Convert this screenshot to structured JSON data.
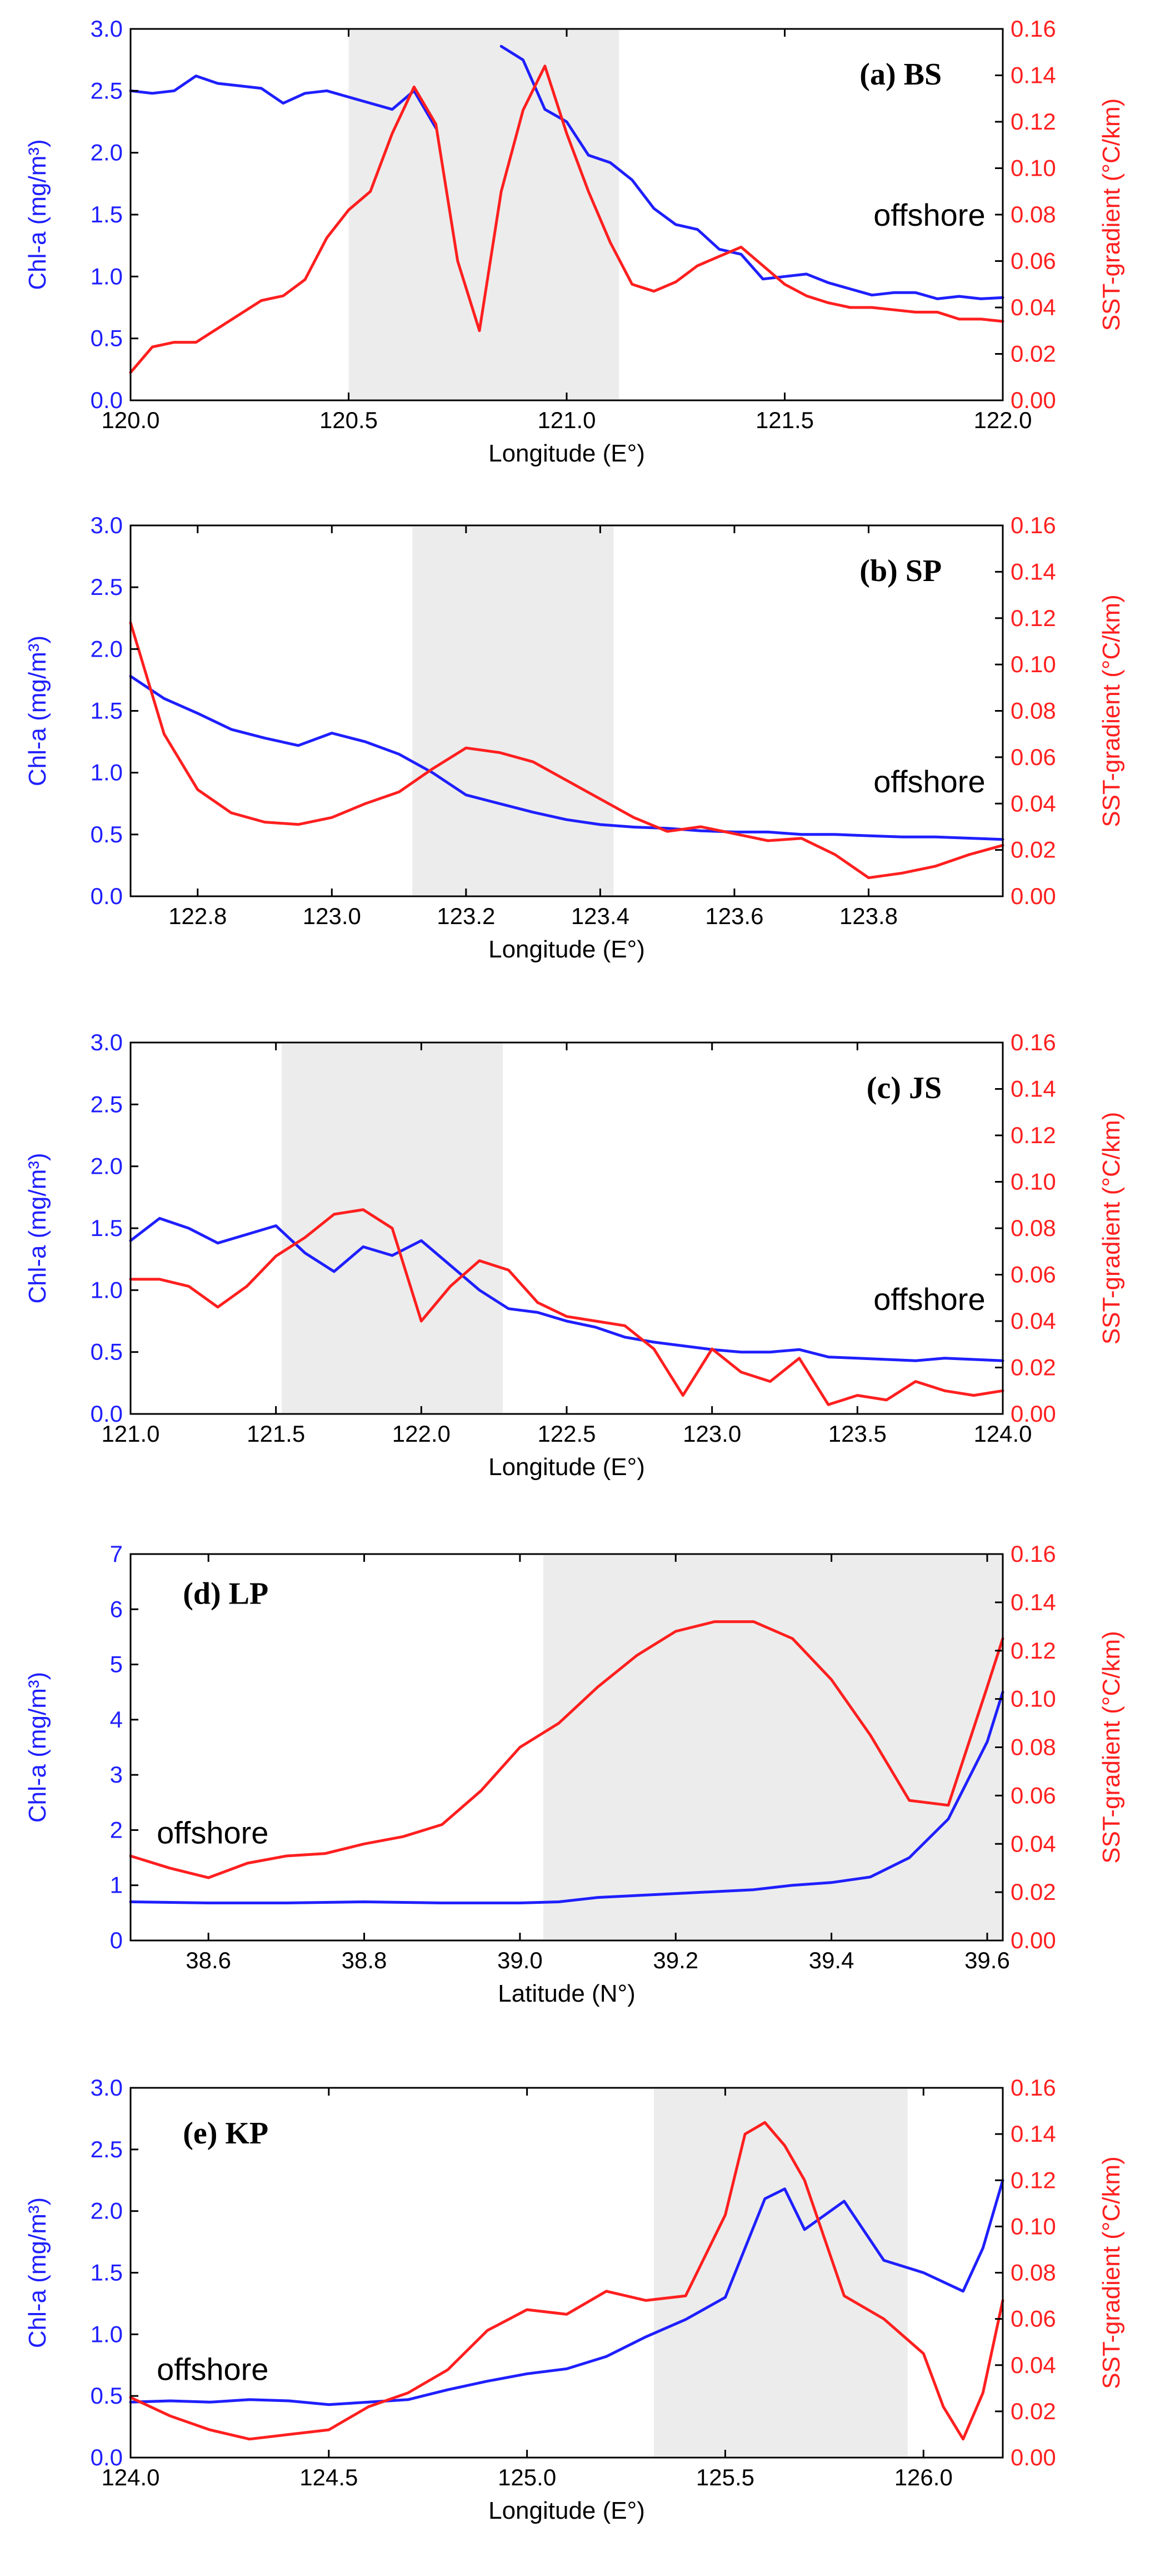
{
  "figure": {
    "colors": {
      "chl": "#1f1fff",
      "sst": "#ff1f1f",
      "shade": "#ececec",
      "axis": "#000000"
    }
  },
  "chart_data": [
    {
      "type": "line",
      "title": "(a) BS",
      "annotation": "offshore",
      "xlabel": "Longitude (E°)",
      "ylabel_left": "Chl-a (mg/m³)",
      "ylabel_right": "SST-gradient (°C/km)",
      "xlim": [
        120.0,
        122.0
      ],
      "ylim_left": [
        0.0,
        3.0
      ],
      "ylim_right": [
        0.0,
        0.16
      ],
      "xticks": [
        "120.0",
        "120.5",
        "121.0",
        "121.5",
        "122.0"
      ],
      "yticks_left": [
        "0.0",
        "0.5",
        "1.0",
        "1.5",
        "2.0",
        "2.5",
        "3.0"
      ],
      "yticks_right": [
        "0.00",
        "0.02",
        "0.04",
        "0.06",
        "0.08",
        "0.10",
        "0.12",
        "0.14",
        "0.16"
      ],
      "shaded_range": [
        120.5,
        121.12
      ],
      "series": [
        {
          "name": "Chl-a",
          "axis": "left",
          "x": [
            120.0,
            120.05,
            120.1,
            120.15,
            120.2,
            120.25,
            120.3,
            120.35,
            120.4,
            120.45,
            120.5,
            120.55,
            120.6,
            120.65,
            120.7,
            120.75,
            120.8,
            null,
            120.85,
            120.9,
            120.95,
            121.0,
            121.05,
            121.1,
            121.15,
            121.2,
            121.25,
            121.3,
            121.35,
            121.4,
            121.45,
            121.5,
            121.55,
            121.6,
            121.65,
            121.7,
            121.75,
            121.8,
            121.85,
            121.9,
            121.95,
            122.0
          ],
          "values": [
            2.5,
            2.48,
            2.5,
            2.62,
            2.56,
            2.54,
            2.52,
            2.4,
            2.48,
            2.5,
            2.45,
            2.4,
            2.35,
            2.5,
            2.2,
            null,
            null,
            null,
            2.86,
            2.75,
            2.35,
            2.25,
            1.98,
            1.92,
            1.78,
            1.55,
            1.42,
            1.38,
            1.22,
            1.18,
            0.98,
            1.0,
            1.02,
            0.95,
            0.9,
            0.85,
            0.87,
            0.87,
            0.82,
            0.84,
            0.82,
            0.83
          ]
        },
        {
          "name": "SST-gradient",
          "axis": "right",
          "x": [
            120.0,
            120.05,
            120.1,
            120.15,
            120.2,
            120.25,
            120.3,
            120.35,
            120.4,
            120.45,
            120.5,
            120.55,
            120.6,
            120.65,
            120.7,
            120.75,
            120.8,
            120.85,
            120.9,
            120.95,
            121.0,
            121.05,
            121.1,
            121.15,
            121.2,
            121.25,
            121.3,
            121.35,
            121.4,
            121.45,
            121.5,
            121.55,
            121.6,
            121.65,
            121.7,
            121.75,
            121.8,
            121.85,
            121.9,
            121.95,
            122.0
          ],
          "values": [
            0.012,
            0.023,
            0.025,
            0.025,
            0.031,
            0.037,
            0.043,
            0.045,
            0.052,
            0.07,
            0.082,
            0.09,
            0.115,
            0.135,
            0.119,
            0.06,
            0.03,
            0.09,
            0.125,
            0.144,
            0.115,
            0.09,
            0.068,
            0.05,
            0.047,
            0.051,
            0.058,
            0.062,
            0.066,
            0.058,
            0.05,
            0.045,
            0.042,
            0.04,
            0.04,
            0.039,
            0.038,
            0.038,
            0.035,
            0.035,
            0.034
          ]
        }
      ]
    },
    {
      "type": "line",
      "title": "(b) SP",
      "annotation": "offshore",
      "xlabel": "Longitude (E°)",
      "ylabel_left": "Chl-a (mg/m³)",
      "ylabel_right": "SST-gradient (°C/km)",
      "xlim": [
        122.7,
        124.0
      ],
      "ylim_left": [
        0.0,
        3.0
      ],
      "ylim_right": [
        0.0,
        0.16
      ],
      "xticks": [
        "122.8",
        "123.0",
        "123.2",
        "123.4",
        "123.6",
        "123.8"
      ],
      "yticks_left": [
        "0.0",
        "0.5",
        "1.0",
        "1.5",
        "2.0",
        "2.5",
        "3.0"
      ],
      "yticks_right": [
        "0.00",
        "0.02",
        "0.04",
        "0.06",
        "0.08",
        "0.10",
        "0.12",
        "0.14",
        "0.16"
      ],
      "shaded_range": [
        123.12,
        123.42
      ],
      "series": [
        {
          "name": "Chl-a",
          "axis": "left",
          "x": [
            122.7,
            122.75,
            122.8,
            122.85,
            122.9,
            122.95,
            123.0,
            123.05,
            123.1,
            123.15,
            123.2,
            123.25,
            123.3,
            123.35,
            123.4,
            123.45,
            123.5,
            123.55,
            123.6,
            123.65,
            123.7,
            123.75,
            123.8,
            123.85,
            123.9,
            123.95,
            124.0
          ],
          "values": [
            1.78,
            1.6,
            1.48,
            1.35,
            1.28,
            1.22,
            1.32,
            1.25,
            1.15,
            1.0,
            0.82,
            0.75,
            0.68,
            0.62,
            0.58,
            0.56,
            0.55,
            0.53,
            0.52,
            0.52,
            0.5,
            0.5,
            0.49,
            0.48,
            0.48,
            0.47,
            0.46
          ]
        },
        {
          "name": "SST-gradient",
          "axis": "right",
          "x": [
            122.7,
            122.75,
            122.8,
            122.85,
            122.9,
            122.95,
            123.0,
            123.05,
            123.1,
            123.15,
            123.2,
            123.25,
            123.3,
            123.35,
            123.4,
            123.45,
            123.5,
            123.55,
            123.6,
            123.65,
            123.7,
            123.75,
            123.8,
            123.85,
            123.9,
            123.95,
            124.0
          ],
          "values": [
            0.118,
            0.07,
            0.046,
            0.036,
            0.032,
            0.031,
            0.034,
            0.04,
            0.045,
            0.055,
            0.064,
            0.062,
            0.058,
            0.05,
            0.042,
            0.034,
            0.028,
            0.03,
            0.027,
            0.024,
            0.025,
            0.018,
            0.008,
            0.01,
            0.013,
            0.018,
            0.022
          ]
        }
      ]
    },
    {
      "type": "line",
      "title": "(c) JS",
      "annotation": "offshore",
      "xlabel": "Longitude (E°)",
      "ylabel_left": "Chl-a (mg/m³)",
      "ylabel_right": "SST-gradient (°C/km)",
      "xlim": [
        121.0,
        124.0
      ],
      "ylim_left": [
        0.0,
        3.0
      ],
      "ylim_right": [
        0.0,
        0.16
      ],
      "xticks": [
        "121.0",
        "121.5",
        "122.0",
        "122.5",
        "123.0",
        "123.5",
        "124.0"
      ],
      "yticks_left": [
        "0.0",
        "0.5",
        "1.0",
        "1.5",
        "2.0",
        "2.5",
        "3.0"
      ],
      "yticks_right": [
        "0.00",
        "0.02",
        "0.04",
        "0.06",
        "0.08",
        "0.10",
        "0.12",
        "0.14",
        "0.16"
      ],
      "shaded_range": [
        121.52,
        122.28
      ],
      "series": [
        {
          "name": "Chl-a",
          "axis": "left",
          "x": [
            121.0,
            121.1,
            121.2,
            121.3,
            121.4,
            121.5,
            121.6,
            121.7,
            121.8,
            121.9,
            122.0,
            122.1,
            122.2,
            122.3,
            122.4,
            122.5,
            122.6,
            122.7,
            122.8,
            122.9,
            123.0,
            123.1,
            123.2,
            123.3,
            123.4,
            123.5,
            123.6,
            123.7,
            123.8,
            123.9,
            124.0
          ],
          "values": [
            1.4,
            1.58,
            1.5,
            1.38,
            1.45,
            1.52,
            1.3,
            1.15,
            1.35,
            1.28,
            1.4,
            1.2,
            1.0,
            0.85,
            0.82,
            0.75,
            0.7,
            0.62,
            0.58,
            0.55,
            0.52,
            0.5,
            0.5,
            0.52,
            0.46,
            0.45,
            0.44,
            0.43,
            0.45,
            0.44,
            0.43
          ]
        },
        {
          "name": "SST-gradient",
          "axis": "right",
          "x": [
            121.0,
            121.1,
            121.2,
            121.3,
            121.4,
            121.5,
            121.6,
            121.7,
            121.8,
            121.9,
            122.0,
            122.1,
            122.2,
            122.3,
            122.4,
            122.5,
            122.6,
            122.7,
            122.8,
            122.9,
            123.0,
            123.1,
            123.2,
            123.3,
            123.4,
            123.5,
            123.6,
            123.7,
            123.8,
            123.9,
            124.0
          ],
          "values": [
            0.058,
            0.058,
            0.055,
            0.046,
            0.055,
            0.068,
            0.076,
            0.086,
            0.088,
            0.08,
            0.04,
            0.055,
            0.066,
            0.062,
            0.048,
            0.042,
            0.04,
            0.038,
            0.028,
            0.008,
            0.028,
            0.018,
            0.014,
            0.024,
            0.004,
            0.008,
            0.006,
            0.014,
            0.01,
            0.008,
            0.01
          ]
        }
      ]
    },
    {
      "type": "line",
      "title": "(d) LP",
      "annotation": "offshore",
      "xlabel": "Latitude (N°)",
      "ylabel_left": "Chl-a (mg/m³)",
      "ylabel_right": "SST-gradient (°C/km)",
      "xlim": [
        38.5,
        39.62
      ],
      "ylim_left": [
        0,
        7
      ],
      "ylim_right": [
        0.0,
        0.16
      ],
      "xticks": [
        "38.6",
        "38.8",
        "39.0",
        "39.2",
        "39.4",
        "39.6"
      ],
      "yticks_left": [
        "0",
        "1",
        "2",
        "3",
        "4",
        "5",
        "6",
        "7"
      ],
      "yticks_right": [
        "0.00",
        "0.02",
        "0.04",
        "0.06",
        "0.08",
        "0.10",
        "0.12",
        "0.14",
        "0.16"
      ],
      "shaded_range": [
        39.03,
        39.62
      ],
      "series": [
        {
          "name": "Chl-a",
          "axis": "left",
          "x": [
            38.5,
            38.6,
            38.7,
            38.8,
            38.9,
            39.0,
            39.05,
            39.1,
            39.2,
            39.3,
            39.35,
            39.4,
            39.45,
            39.5,
            39.55,
            39.6,
            39.62
          ],
          "values": [
            0.7,
            0.68,
            0.68,
            0.7,
            0.68,
            0.68,
            0.7,
            0.78,
            0.85,
            0.92,
            1.0,
            1.05,
            1.15,
            1.5,
            2.2,
            3.6,
            4.5
          ]
        },
        {
          "name": "SST-gradient",
          "axis": "right",
          "x": [
            38.5,
            38.55,
            38.6,
            38.65,
            38.7,
            38.75,
            38.8,
            38.85,
            38.9,
            38.95,
            39.0,
            39.05,
            39.1,
            39.15,
            39.2,
            39.25,
            39.3,
            39.35,
            39.4,
            39.45,
            39.5,
            39.55,
            39.6,
            39.62
          ],
          "values": [
            0.035,
            0.03,
            0.026,
            0.032,
            0.035,
            0.036,
            0.04,
            0.043,
            0.048,
            0.062,
            0.08,
            0.09,
            0.105,
            0.118,
            0.128,
            0.132,
            0.132,
            0.125,
            0.108,
            0.085,
            0.058,
            0.056,
            0.105,
            0.125
          ]
        }
      ]
    },
    {
      "type": "line",
      "title": "(e) KP",
      "annotation": "offshore",
      "xlabel": "Longitude (E°)",
      "ylabel_left": "Chl-a (mg/m³)",
      "ylabel_right": "SST-gradient (°C/km)",
      "xlim": [
        124.0,
        126.2
      ],
      "ylim_left": [
        0.0,
        3.0
      ],
      "ylim_right": [
        0.0,
        0.16
      ],
      "xticks": [
        "124.0",
        "124.5",
        "125.0",
        "125.5",
        "126.0"
      ],
      "yticks_left": [
        "0.0",
        "0.5",
        "1.0",
        "1.5",
        "2.0",
        "2.5",
        "3.0"
      ],
      "yticks_right": [
        "0.00",
        "0.02",
        "0.04",
        "0.06",
        "0.08",
        "0.10",
        "0.12",
        "0.14",
        "0.16"
      ],
      "shaded_range": [
        125.32,
        125.96
      ],
      "series": [
        {
          "name": "Chl-a",
          "axis": "left",
          "x": [
            124.0,
            124.1,
            124.2,
            124.3,
            124.4,
            124.5,
            124.6,
            124.7,
            124.8,
            124.9,
            125.0,
            125.1,
            125.2,
            125.3,
            125.4,
            125.5,
            125.6,
            125.65,
            125.7,
            125.8,
            125.9,
            126.0,
            126.1,
            126.15,
            126.2
          ],
          "values": [
            0.45,
            0.46,
            0.45,
            0.47,
            0.46,
            0.43,
            0.45,
            0.47,
            0.55,
            0.62,
            0.68,
            0.72,
            0.82,
            0.98,
            1.12,
            1.3,
            2.1,
            2.18,
            1.85,
            2.08,
            1.6,
            1.5,
            1.35,
            1.7,
            2.25
          ]
        },
        {
          "name": "SST-gradient",
          "axis": "right",
          "x": [
            124.0,
            124.1,
            124.2,
            124.3,
            124.4,
            124.5,
            124.6,
            124.7,
            124.8,
            124.9,
            125.0,
            125.1,
            125.2,
            125.3,
            125.4,
            125.5,
            125.55,
            125.6,
            125.65,
            125.7,
            125.8,
            125.9,
            126.0,
            126.05,
            126.1,
            126.15,
            126.2
          ],
          "values": [
            0.026,
            0.018,
            0.012,
            0.008,
            0.01,
            0.012,
            0.022,
            0.028,
            0.038,
            0.055,
            0.064,
            0.062,
            0.072,
            0.068,
            0.07,
            0.105,
            0.14,
            0.145,
            0.135,
            0.12,
            0.07,
            0.06,
            0.045,
            0.022,
            0.008,
            0.028,
            0.068
          ]
        }
      ]
    }
  ]
}
